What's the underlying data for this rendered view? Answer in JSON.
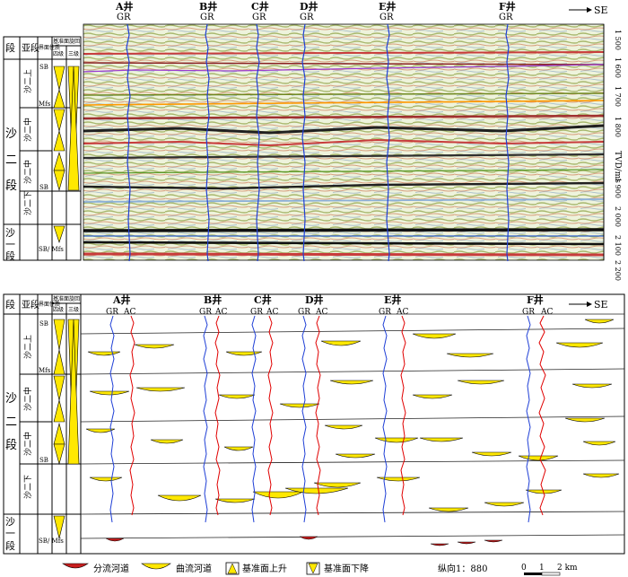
{
  "top": {
    "direction": "SE",
    "headers": {
      "seg": "段",
      "subseg": "亚段",
      "surface": "界面性质",
      "cycle_title": "基准面旋回",
      "level4": "四级",
      "level3": "三级"
    },
    "wells": [
      {
        "name": "A井",
        "log": "GR"
      },
      {
        "name": "B井",
        "log": "GR"
      },
      {
        "name": "C井",
        "log": "GR"
      },
      {
        "name": "D井",
        "log": "GR"
      },
      {
        "name": "E井",
        "log": "GR"
      },
      {
        "name": "F井",
        "log": "GR"
      }
    ],
    "depth_label": "TVD/ms",
    "depth_ticks": [
      "1 500",
      "1 600",
      "1 700",
      "1 800",
      "1 900",
      "2 000",
      "2 100",
      "2 200"
    ],
    "segments": {
      "sha2": [
        "沙",
        "二",
        "段"
      ],
      "sha1": [
        "沙",
        "一",
        "段"
      ]
    },
    "subsegments": [
      "沙二上",
      "沙二中",
      "沙二中",
      "沙二下"
    ],
    "surfaces": [
      "SB",
      "Mfs",
      "SB",
      "SB/ Mfs"
    ]
  },
  "bottom": {
    "direction": "SE",
    "wells": [
      {
        "name": "A井",
        "logs": [
          "GR",
          "AC"
        ]
      },
      {
        "name": "B井",
        "logs": [
          "GR",
          "AC"
        ]
      },
      {
        "name": "C井",
        "logs": [
          "GR",
          "AC"
        ]
      },
      {
        "name": "D井",
        "logs": [
          "GR",
          "AC"
        ]
      },
      {
        "name": "E井",
        "logs": [
          "GR",
          "AC"
        ]
      },
      {
        "name": "F井",
        "logs": [
          "GR",
          "AC"
        ]
      }
    ]
  },
  "legend": {
    "items": [
      "分流河道",
      "曲流河道",
      "基准面上升",
      "基准面下降"
    ],
    "scale_text": "纵向1：880",
    "bar_ticks": [
      "0",
      "1",
      "2 km"
    ]
  },
  "colors": {
    "sand": "#ffe800",
    "channel": "#c81e1e",
    "gr": "#1f3fd6",
    "ac": "#e00000"
  }
}
